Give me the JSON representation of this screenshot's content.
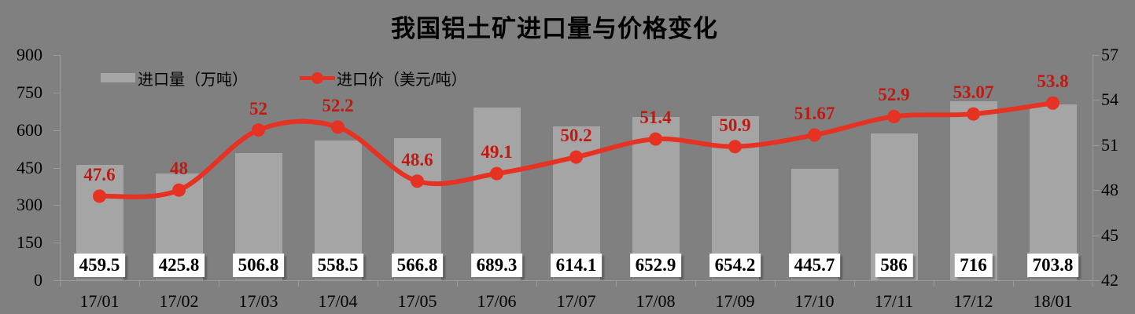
{
  "title": "我国铝土矿进口量与价格变化",
  "legend": {
    "volume_label": "进口量（万吨）",
    "price_label": "进口价（美元/吨）"
  },
  "colors": {
    "background": "#808080",
    "bar": "#a5a5a5",
    "line": "#e53222",
    "line_label": "#bf1a12",
    "axis": "#9b9b9b",
    "text": "#000000",
    "bar_label_bg": "#ffffff"
  },
  "chart_data": {
    "type": "bar",
    "subtype": "bar+line combo, dual axis",
    "title": "我国铝土矿进口量与价格变化",
    "categories": [
      "17/01",
      "17/02",
      "17/03",
      "17/04",
      "17/05",
      "17/06",
      "17/07",
      "17/08",
      "17/09",
      "17/10",
      "17/11",
      "17/12",
      "18/01"
    ],
    "series": [
      {
        "name": "进口量（万吨）",
        "type": "bar",
        "axis": "left",
        "values": [
          459.5,
          425.8,
          506.8,
          558.5,
          566.8,
          689.3,
          614.1,
          652.9,
          654.2,
          445.7,
          586,
          716,
          703.8
        ]
      },
      {
        "name": "进口价（美元/吨）",
        "type": "line",
        "axis": "right",
        "smooth": true,
        "values": [
          47.6,
          48,
          52,
          52.2,
          48.6,
          49.1,
          50.2,
          51.4,
          50.9,
          51.67,
          52.9,
          53.07,
          53.8
        ]
      }
    ],
    "left_axis": {
      "min": 0,
      "max": 900,
      "step": 150,
      "tick_labels": [
        "900",
        "750",
        "600",
        "450",
        "300",
        "150",
        "0"
      ]
    },
    "right_axis": {
      "min": 42,
      "max": 57,
      "step": 3,
      "tick_labels": [
        "57",
        "54",
        "51",
        "48",
        "45",
        "42"
      ]
    },
    "grid": false,
    "legend_position": "top-inside-left",
    "bar_labels_position": "inside-base-white-box",
    "line_labels_position": "above-markers"
  }
}
